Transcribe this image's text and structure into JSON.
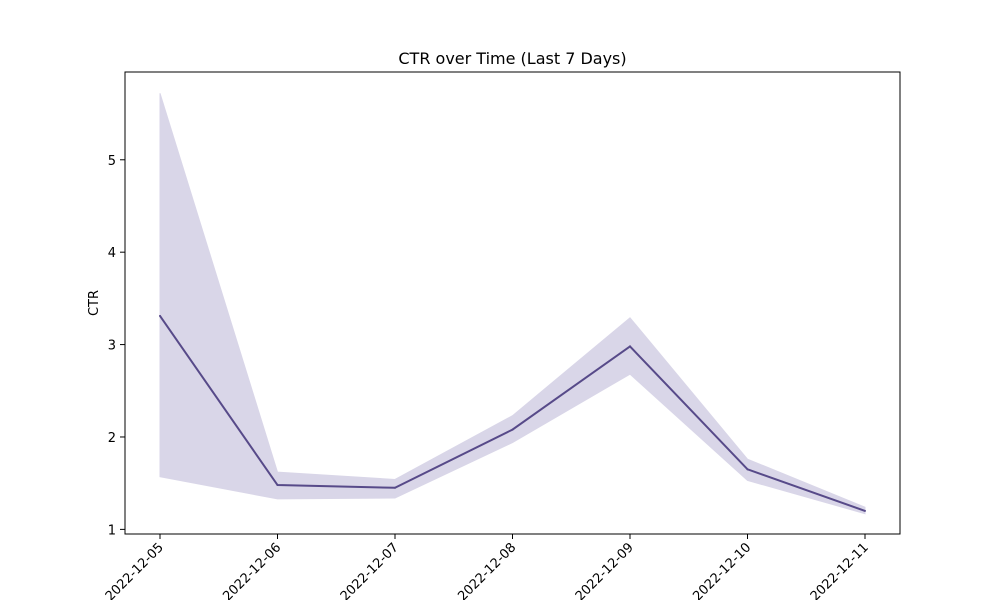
{
  "chart_data": {
    "type": "line",
    "title": "CTR over Time (Last 7 Days)",
    "xlabel": "",
    "ylabel": "CTR",
    "x": [
      "2022-12-05",
      "2022-12-06",
      "2022-12-07",
      "2022-12-08",
      "2022-12-09",
      "2022-12-10",
      "2022-12-11"
    ],
    "series": [
      {
        "values": [
          3.31,
          1.48,
          1.45,
          2.08,
          2.98,
          1.65,
          1.2
        ],
        "ci_lower": [
          1.57,
          1.33,
          1.34,
          1.94,
          2.68,
          1.53,
          1.17
        ],
        "ci_upper": [
          5.72,
          1.62,
          1.54,
          2.23,
          3.29,
          1.76,
          1.24
        ],
        "color": "#574a89",
        "band_color": "#d9d6e8"
      }
    ],
    "yticks": [
      1,
      2,
      3,
      4,
      5
    ],
    "ylim": [
      0.95,
      5.95
    ],
    "grid": false,
    "legend": "none"
  }
}
